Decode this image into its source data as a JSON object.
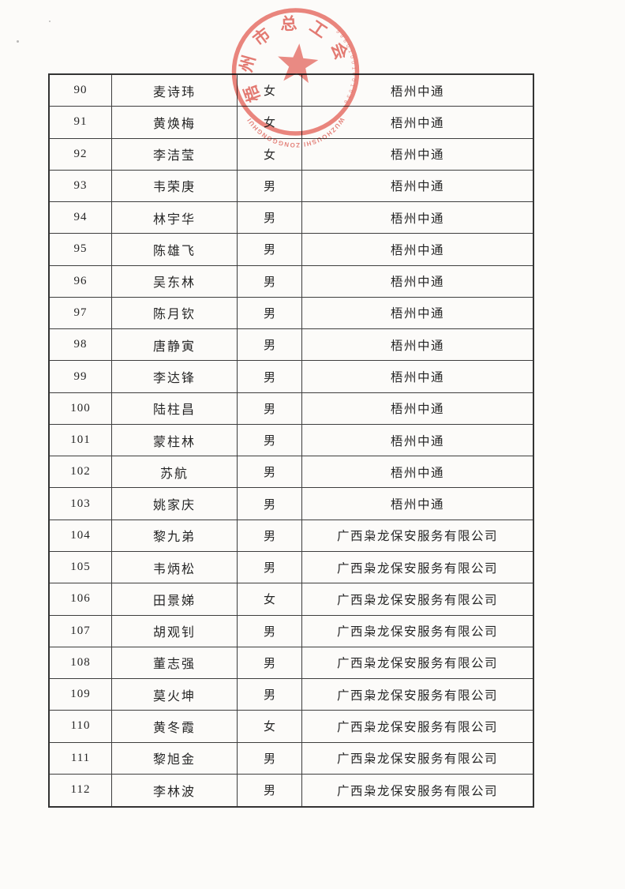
{
  "stamp": {
    "org_name": "梧州市总工会",
    "pinyin": "WUZHOUSHI ZONGGONGHUI",
    "serial": "99601001001036",
    "ink_color": "#e4574e"
  },
  "table": {
    "rows": [
      {
        "no": "90",
        "name": "麦诗玮",
        "gender": "女",
        "company": "梧州中通"
      },
      {
        "no": "91",
        "name": "黄焕梅",
        "gender": "女",
        "company": "梧州中通"
      },
      {
        "no": "92",
        "name": "李洁莹",
        "gender": "女",
        "company": "梧州中通"
      },
      {
        "no": "93",
        "name": "韦荣庚",
        "gender": "男",
        "company": "梧州中通"
      },
      {
        "no": "94",
        "name": "林宇华",
        "gender": "男",
        "company": "梧州中通"
      },
      {
        "no": "95",
        "name": "陈雄飞",
        "gender": "男",
        "company": "梧州中通"
      },
      {
        "no": "96",
        "name": "吴东林",
        "gender": "男",
        "company": "梧州中通"
      },
      {
        "no": "97",
        "name": "陈月钦",
        "gender": "男",
        "company": "梧州中通"
      },
      {
        "no": "98",
        "name": "唐静寅",
        "gender": "男",
        "company": "梧州中通"
      },
      {
        "no": "99",
        "name": "李达锋",
        "gender": "男",
        "company": "梧州中通"
      },
      {
        "no": "100",
        "name": "陆柱昌",
        "gender": "男",
        "company": "梧州中通"
      },
      {
        "no": "101",
        "name": "蒙柱林",
        "gender": "男",
        "company": "梧州中通"
      },
      {
        "no": "102",
        "name": "苏航",
        "gender": "男",
        "company": "梧州中通"
      },
      {
        "no": "103",
        "name": "姚家庆",
        "gender": "男",
        "company": "梧州中通"
      },
      {
        "no": "104",
        "name": "黎九弟",
        "gender": "男",
        "company": "广西枭龙保安服务有限公司"
      },
      {
        "no": "105",
        "name": "韦炳松",
        "gender": "男",
        "company": "广西枭龙保安服务有限公司"
      },
      {
        "no": "106",
        "name": "田景娣",
        "gender": "女",
        "company": "广西枭龙保安服务有限公司"
      },
      {
        "no": "107",
        "name": "胡观钊",
        "gender": "男",
        "company": "广西枭龙保安服务有限公司"
      },
      {
        "no": "108",
        "name": "董志强",
        "gender": "男",
        "company": "广西枭龙保安服务有限公司"
      },
      {
        "no": "109",
        "name": "莫火坤",
        "gender": "男",
        "company": "广西枭龙保安服务有限公司"
      },
      {
        "no": "110",
        "name": "黄冬霞",
        "gender": "女",
        "company": "广西枭龙保安服务有限公司"
      },
      {
        "no": "111",
        "name": "黎旭金",
        "gender": "男",
        "company": "广西枭龙保安服务有限公司"
      },
      {
        "no": "112",
        "name": "李林波",
        "gender": "男",
        "company": "广西枭龙保安服务有限公司"
      }
    ]
  }
}
